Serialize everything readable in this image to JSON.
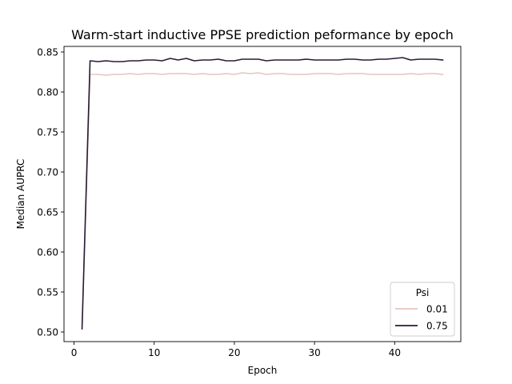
{
  "chart_data": {
    "type": "line",
    "title": "Warm-start inductive PPSE prediction peformance by epoch",
    "xlabel": "Epoch",
    "ylabel": "Median AUPRC",
    "xlim": [
      -1.25,
      48.25
    ],
    "ylim": [
      0.488,
      0.857
    ],
    "xticks": [
      0,
      10,
      20,
      30,
      40
    ],
    "yticks": [
      0.5,
      0.55,
      0.6,
      0.65,
      0.7,
      0.75,
      0.8,
      0.85
    ],
    "ytick_labels": [
      "0.50",
      "0.55",
      "0.60",
      "0.65",
      "0.70",
      "0.75",
      "0.80",
      "0.85"
    ],
    "grid": false,
    "legend": {
      "title": "Psi",
      "placement": "lower-right"
    },
    "x": [
      1,
      2,
      3,
      4,
      5,
      6,
      7,
      8,
      9,
      10,
      11,
      12,
      13,
      14,
      15,
      16,
      17,
      18,
      19,
      20,
      21,
      22,
      23,
      24,
      25,
      26,
      27,
      28,
      29,
      30,
      31,
      32,
      33,
      34,
      35,
      36,
      37,
      38,
      39,
      40,
      41,
      42,
      43,
      44,
      45,
      46
    ],
    "series": [
      {
        "name": "0.01",
        "color": "#e6c5c0",
        "values": [
          0.504,
          0.822,
          0.822,
          0.821,
          0.822,
          0.822,
          0.823,
          0.822,
          0.823,
          0.823,
          0.822,
          0.823,
          0.823,
          0.823,
          0.822,
          0.823,
          0.822,
          0.822,
          0.823,
          0.822,
          0.824,
          0.823,
          0.824,
          0.822,
          0.823,
          0.823,
          0.822,
          0.822,
          0.822,
          0.823,
          0.823,
          0.823,
          0.822,
          0.823,
          0.823,
          0.823,
          0.822,
          0.822,
          0.822,
          0.822,
          0.822,
          0.823,
          0.822,
          0.823,
          0.823,
          0.822
        ]
      },
      {
        "name": "0.75",
        "color": "#2b1a35",
        "values": [
          0.504,
          0.839,
          0.838,
          0.839,
          0.838,
          0.838,
          0.839,
          0.839,
          0.84,
          0.84,
          0.839,
          0.842,
          0.84,
          0.842,
          0.839,
          0.84,
          0.84,
          0.841,
          0.839,
          0.839,
          0.841,
          0.841,
          0.841,
          0.839,
          0.84,
          0.84,
          0.84,
          0.84,
          0.841,
          0.84,
          0.84,
          0.84,
          0.84,
          0.841,
          0.841,
          0.84,
          0.84,
          0.841,
          0.841,
          0.842,
          0.843,
          0.84,
          0.841,
          0.841,
          0.841,
          0.84
        ]
      }
    ]
  }
}
